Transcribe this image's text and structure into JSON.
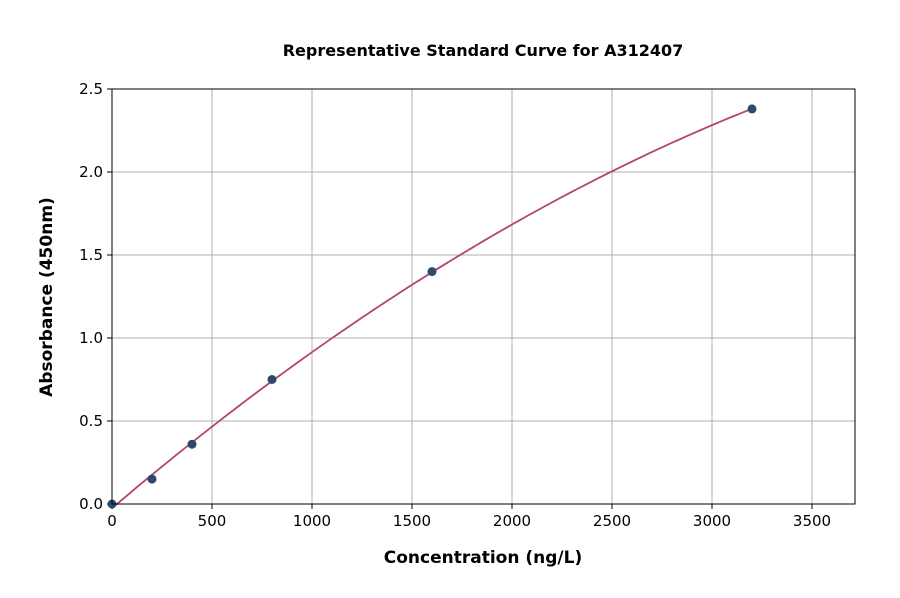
{
  "chart_data": {
    "type": "scatter",
    "title": "Representative Standard Curve for A312407",
    "xlabel": "Concentration (ng/L)",
    "ylabel": "Absorbance (450nm)",
    "xlim": [
      0,
      3715
    ],
    "ylim": [
      0,
      2.5
    ],
    "xticks": [
      0,
      500,
      1000,
      1500,
      2000,
      2500,
      3000,
      3500
    ],
    "yticks": [
      0.0,
      0.5,
      1.0,
      1.5,
      2.0,
      2.5
    ],
    "ytick_labels": [
      "0.0",
      "0.5",
      "1.0",
      "1.5",
      "2.0",
      "2.5"
    ],
    "grid": true,
    "x": [
      0,
      200,
      400,
      800,
      1600,
      3200
    ],
    "y": [
      0.0,
      0.15,
      0.36,
      0.75,
      1.4,
      2.38
    ],
    "fit_line": "smooth fitted curve",
    "colors": {
      "points": "#2e4a6b",
      "curve": "#b5446e",
      "grid": "#b0b0b0"
    }
  }
}
